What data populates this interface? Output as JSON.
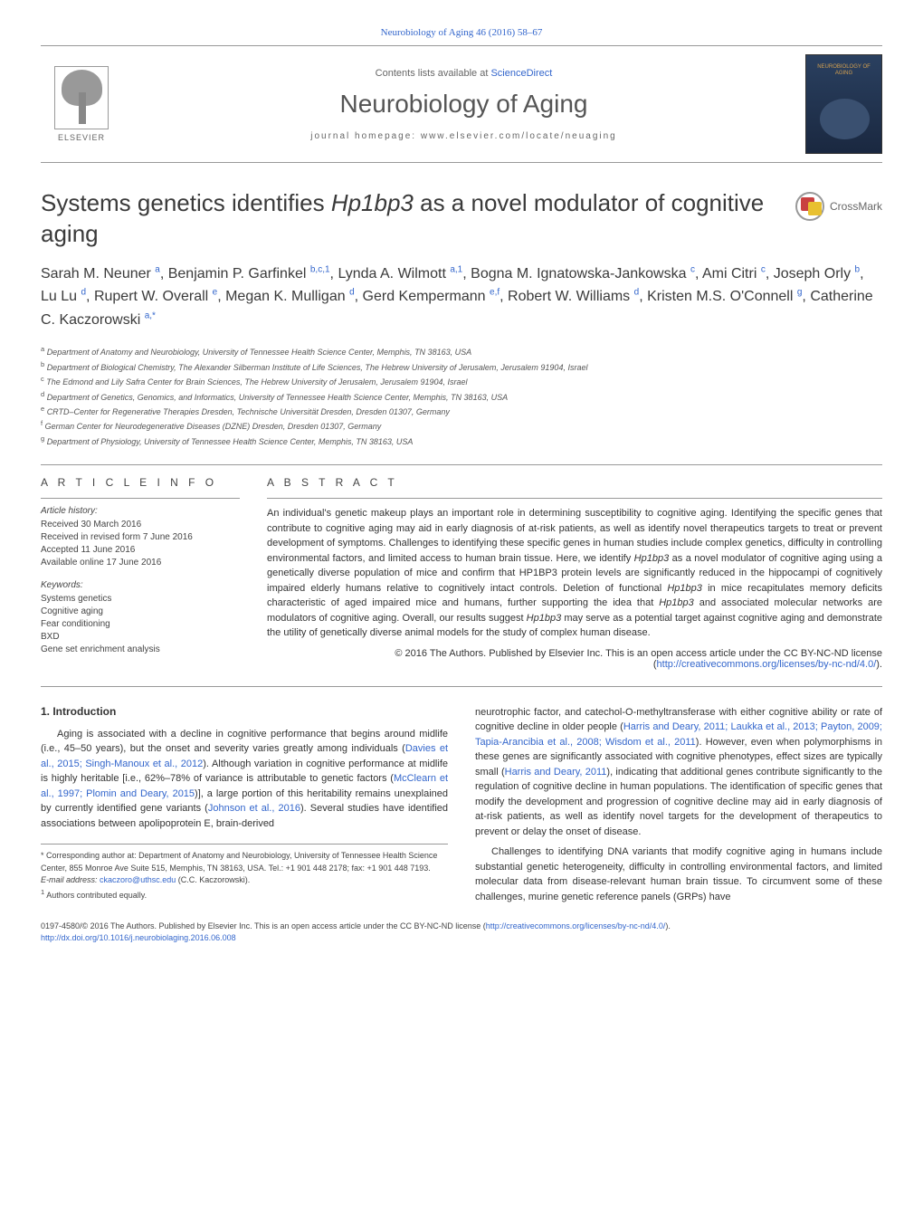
{
  "header": {
    "top_link": "Neurobiology of Aging 46 (2016) 58–67",
    "publisher_logo": "ELSEVIER",
    "contents_at": "Contents lists available at",
    "sciencedirect": "ScienceDirect",
    "journal_title": "Neurobiology of Aging",
    "homepage": "journal homepage: www.elsevier.com/locate/neuaging",
    "cover_label": "NEUROBIOLOGY OF AGING"
  },
  "crossmark": "CrossMark",
  "title": {
    "pre": "Systems genetics identifies ",
    "gene": "Hp1bp3",
    "post": " as a novel modulator of cognitive aging"
  },
  "authors": "Sarah M. Neuner <sup>a</sup>, Benjamin P. Garfinkel <sup>b,c,1</sup>, Lynda A. Wilmott <sup>a,1</sup>, Bogna M. Ignatowska-Jankowska <sup>c</sup>, Ami Citri <sup>c</sup>, Joseph Orly <sup>b</sup>, Lu Lu <sup>d</sup>, Rupert W. Overall <sup>e</sup>, Megan K. Mulligan <sup>d</sup>, Gerd Kempermann <sup>e,f</sup>, Robert W. Williams <sup>d</sup>, Kristen M.S. O'Connell <sup>g</sup>, Catherine C. Kaczorowski <sup>a,*</sup>",
  "affiliations": {
    "a": "Department of Anatomy and Neurobiology, University of Tennessee Health Science Center, Memphis, TN 38163, USA",
    "b": "Department of Biological Chemistry, The Alexander Silberman Institute of Life Sciences, The Hebrew University of Jerusalem, Jerusalem 91904, Israel",
    "c": "The Edmond and Lily Safra Center for Brain Sciences, The Hebrew University of Jerusalem, Jerusalem 91904, Israel",
    "d": "Department of Genetics, Genomics, and Informatics, University of Tennessee Health Science Center, Memphis, TN 38163, USA",
    "e": "CRTD–Center for Regenerative Therapies Dresden, Technische Universität Dresden, Dresden 01307, Germany",
    "f": "German Center for Neurodegenerative Diseases (DZNE) Dresden, Dresden 01307, Germany",
    "g": "Department of Physiology, University of Tennessee Health Science Center, Memphis, TN 38163, USA"
  },
  "article_info": {
    "heading": "A R T I C L E   I N F O",
    "history_label": "Article history:",
    "received": "Received 30 March 2016",
    "revised": "Received in revised form 7 June 2016",
    "accepted": "Accepted 11 June 2016",
    "online": "Available online 17 June 2016",
    "keywords_label": "Keywords:",
    "kw1": "Systems genetics",
    "kw2": "Cognitive aging",
    "kw3": "Fear conditioning",
    "kw4": "BXD",
    "kw5": "Gene set enrichment analysis"
  },
  "abstract": {
    "heading": "A B S T R A C T",
    "text": "An individual's genetic makeup plays an important role in determining susceptibility to cognitive aging. Identifying the specific genes that contribute to cognitive aging may aid in early diagnosis of at-risk patients, as well as identify novel therapeutics targets to treat or prevent development of symptoms. Challenges to identifying these specific genes in human studies include complex genetics, difficulty in controlling environmental factors, and limited access to human brain tissue. Here, we identify Hp1bp3 as a novel modulator of cognitive aging using a genetically diverse population of mice and confirm that HP1BP3 protein levels are significantly reduced in the hippocampi of cognitively impaired elderly humans relative to cognitively intact controls. Deletion of functional Hp1bp3 in mice recapitulates memory deficits characteristic of aged impaired mice and humans, further supporting the idea that Hp1bp3 and associated molecular networks are modulators of cognitive aging. Overall, our results suggest Hp1bp3 may serve as a potential target against cognitive aging and demonstrate the utility of genetically diverse animal models for the study of complex human disease.",
    "license_pre": "© 2016 The Authors. Published by Elsevier Inc. This is an open access article under the CC BY-NC-ND license (",
    "license_link": "http://creativecommons.org/licenses/by-nc-nd/4.0/",
    "license_post": ")."
  },
  "intro": {
    "heading": "1. Introduction",
    "p1": "Aging is associated with a decline in cognitive performance that begins around midlife (i.e., 45–50 years), but the onset and severity varies greatly among individuals (Davies et al., 2015; Singh-Manoux et al., 2012). Although variation in cognitive performance at midlife is highly heritable [i.e., 62%–78% of variance is attributable to genetic factors (McClearn et al., 1997; Plomin and Deary, 2015)], a large portion of this heritability remains unexplained by currently identified gene variants (Johnson et al., 2016). Several studies have identified associations between apolipoprotein E, brain-derived",
    "p2": "neurotrophic factor, and catechol-O-methyltransferase with either cognitive ability or rate of cognitive decline in older people (Harris and Deary, 2011; Laukka et al., 2013; Payton, 2009; Tapia-Arancibia et al., 2008; Wisdom et al., 2011). However, even when polymorphisms in these genes are significantly associated with cognitive phenotypes, effect sizes are typically small (Harris and Deary, 2011), indicating that additional genes contribute significantly to the regulation of cognitive decline in human populations. The identification of specific genes that modify the development and progression of cognitive decline may aid in early diagnosis of at-risk patients, as well as identify novel targets for the development of therapeutics to prevent or delay the onset of disease.",
    "p3": "Challenges to identifying DNA variants that modify cognitive aging in humans include substantial genetic heterogeneity, difficulty in controlling environmental factors, and limited molecular data from disease-relevant human brain tissue. To circumvent some of these challenges, murine genetic reference panels (GRPs) have"
  },
  "footnotes": {
    "corr": "* Corresponding author at: Department of Anatomy and Neurobiology, University of Tennessee Health Science Center, 855 Monroe Ave Suite 515, Memphis, TN 38163, USA. Tel.: +1 901 448 2178; fax: +1 901 448 7193.",
    "email_label": "E-mail address:",
    "email": "ckaczoro@uthsc.edu",
    "email_who": " (C.C. Kaczorowski).",
    "equal": "Authors contributed equally.",
    "equal_sup": "1"
  },
  "footer": {
    "issn": "0197-4580/© 2016 The Authors. Published by Elsevier Inc. This is an open access article under the CC BY-NC-ND license (",
    "issn_link": "http://creativecommons.org/licenses/by-nc-nd/4.0/",
    "issn_post": ").",
    "doi": "http://dx.doi.org/10.1016/j.neurobiolaging.2016.06.008"
  }
}
